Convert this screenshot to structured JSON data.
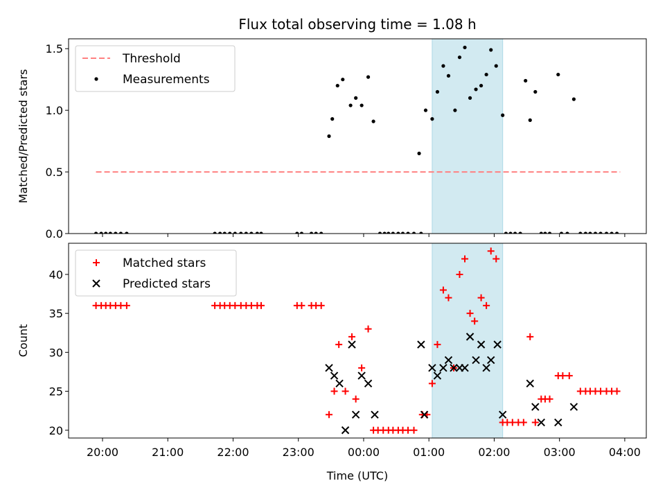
{
  "chart_data": {
    "type": "scatter",
    "title": "Flux total observing time = 1.08 h",
    "xlabel": "Time (UTC)",
    "x_ticks": [
      "20:00",
      "21:00",
      "22:00",
      "23:00",
      "00:00",
      "01:00",
      "02:00",
      "03:00",
      "04:00"
    ],
    "x_tick_values_h": [
      20,
      21,
      22,
      23,
      24,
      25,
      26,
      27,
      28
    ],
    "xlim_h": [
      19.48,
      28.33
    ],
    "shaded_interval_h": [
      25.05,
      26.13
    ],
    "shade_color": "#add8e6",
    "panels": [
      {
        "ylabel": "Matched/Predicted stars",
        "ylim": [
          0,
          1.58
        ],
        "y_ticks": [
          0.0,
          0.5,
          1.0,
          1.5
        ],
        "y_tick_labels": [
          "0.0",
          "0.5",
          "1.0",
          "1.5"
        ],
        "legend_placement": "upper-left",
        "legend": [
          "Threshold",
          "Measurements"
        ],
        "threshold": {
          "name": "Threshold",
          "y": 0.5,
          "x_range_h": [
            19.9,
            27.93
          ],
          "color": "#ff8080",
          "style": "dashed"
        },
        "series": [
          {
            "name": "Measurements",
            "marker": "dot",
            "color": "#000000",
            "x_h": [
              19.9,
              19.98,
              20.05,
              20.12,
              20.2,
              20.28,
              20.37,
              21.72,
              21.8,
              21.87,
              21.95,
              22.03,
              22.12,
              22.2,
              22.28,
              22.37,
              22.43,
              22.98,
              23.05,
              23.2,
              23.27,
              23.35,
              23.47,
              23.52,
              23.6,
              23.68,
              23.8,
              23.88,
              23.97,
              24.07,
              24.15,
              24.25,
              24.32,
              24.38,
              24.45,
              24.53,
              24.6,
              24.68,
              24.77,
              24.85,
              24.88,
              24.95,
              25.05,
              25.13,
              25.22,
              25.3,
              25.4,
              25.47,
              25.55,
              25.63,
              25.72,
              25.8,
              25.88,
              25.95,
              26.03,
              26.13,
              26.18,
              26.25,
              26.32,
              26.4,
              26.48,
              26.55,
              26.63,
              26.72,
              26.78,
              26.85,
              26.98,
              27.03,
              27.12,
              27.22,
              27.32,
              27.4,
              27.47,
              27.55,
              27.63,
              27.72,
              27.8,
              27.88
            ],
            "y": [
              0,
              0,
              0,
              0,
              0,
              0,
              0,
              0,
              0,
              0,
              0,
              0,
              0,
              0,
              0,
              0,
              0,
              0,
              0,
              0,
              0,
              0,
              0.79,
              0.93,
              1.2,
              1.25,
              1.04,
              1.1,
              1.04,
              1.27,
              0.91,
              0,
              0,
              0,
              0,
              0,
              0,
              0,
              0,
              0.65,
              0,
              1.0,
              0.93,
              1.15,
              1.36,
              1.28,
              1.0,
              1.43,
              1.51,
              1.1,
              1.17,
              1.2,
              1.29,
              1.49,
              1.36,
              0.96,
              0,
              0,
              0,
              0,
              1.24,
              0.92,
              1.15,
              0,
              0,
              0,
              1.29,
              0,
              0,
              1.09,
              0,
              0,
              0,
              0,
              0,
              0,
              0,
              0
            ]
          }
        ]
      },
      {
        "ylabel": "Count",
        "ylim": [
          19,
          44
        ],
        "y_ticks": [
          20,
          25,
          30,
          35,
          40
        ],
        "y_tick_labels": [
          "20",
          "25",
          "30",
          "35",
          "40"
        ],
        "legend_placement": "upper-left",
        "legend": [
          "Matched stars",
          "Predicted stars"
        ],
        "series": [
          {
            "name": "Matched stars",
            "marker": "plus",
            "color": "#ff0000",
            "x_h": [
              19.9,
              19.98,
              20.05,
              20.12,
              20.2,
              20.28,
              20.37,
              21.72,
              21.8,
              21.87,
              21.95,
              22.03,
              22.12,
              22.2,
              22.28,
              22.37,
              22.43,
              22.98,
              23.05,
              23.2,
              23.27,
              23.35,
              23.47,
              23.55,
              23.62,
              23.72,
              23.82,
              23.88,
              23.97,
              24.07,
              24.15,
              24.22,
              24.3,
              24.38,
              24.45,
              24.53,
              24.6,
              24.68,
              24.77,
              24.9,
              24.97,
              25.05,
              25.13,
              25.22,
              25.3,
              25.38,
              25.47,
              25.55,
              25.63,
              25.7,
              25.8,
              25.88,
              25.95,
              26.03,
              26.13,
              26.2,
              26.28,
              26.37,
              26.45,
              26.55,
              26.63,
              26.72,
              26.78,
              26.85,
              26.98,
              27.05,
              27.15,
              27.32,
              27.4,
              27.47,
              27.55,
              27.63,
              27.72,
              27.8,
              27.88
            ],
            "y": [
              36,
              36,
              36,
              36,
              36,
              36,
              36,
              36,
              36,
              36,
              36,
              36,
              36,
              36,
              36,
              36,
              36,
              36,
              36,
              36,
              36,
              36,
              22,
              25,
              31,
              25,
              32,
              24,
              28,
              33,
              20,
              20,
              20,
              20,
              20,
              20,
              20,
              20,
              20,
              22,
              22,
              26,
              31,
              38,
              37,
              28,
              40,
              42,
              35,
              34,
              37,
              36,
              43,
              42,
              21,
              21,
              21,
              21,
              21,
              32,
              21,
              24,
              24,
              24,
              27,
              27,
              27,
              25,
              25,
              25,
              25,
              25,
              25,
              25,
              25
            ]
          },
          {
            "name": "Predicted stars",
            "marker": "x",
            "color": "#000000",
            "x_h": [
              23.47,
              23.55,
              23.63,
              23.72,
              23.82,
              23.88,
              23.97,
              24.07,
              24.17,
              24.88,
              24.93,
              25.05,
              25.13,
              25.22,
              25.3,
              25.38,
              25.47,
              25.55,
              25.63,
              25.72,
              25.8,
              25.88,
              25.95,
              26.05,
              26.13,
              26.55,
              26.63,
              26.72,
              26.98,
              27.22
            ],
            "y": [
              28,
              27,
              26,
              20,
              31,
              22,
              27,
              26,
              22,
              31,
              22,
              28,
              27,
              28,
              29,
              28,
              28,
              28,
              32,
              29,
              31,
              28,
              29,
              31,
              22,
              26,
              23,
              21,
              21,
              23
            ]
          }
        ]
      }
    ]
  }
}
